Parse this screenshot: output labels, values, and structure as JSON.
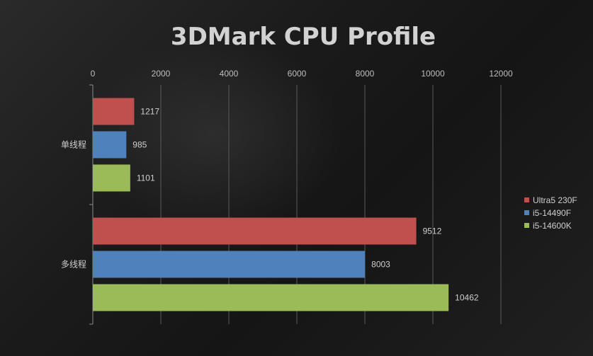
{
  "colors": {
    "series": [
      "#C0504D",
      "#4F81BD",
      "#9BBB59"
    ],
    "text": "#d2d2d2",
    "grid": "#5a5a5a"
  },
  "chart_data": {
    "type": "bar",
    "orientation": "horizontal",
    "title": "3DMark CPU Profile",
    "categories": [
      "单线程",
      "多线程"
    ],
    "series": [
      {
        "name": "Ultra5 230F",
        "values": [
          1217,
          9512
        ]
      },
      {
        "name": "i5-14490F",
        "values": [
          985,
          8003
        ]
      },
      {
        "name": "i5-14600K",
        "values": [
          1101,
          10462
        ]
      }
    ],
    "xlim": [
      0,
      12000
    ],
    "x_ticks": [
      0,
      2000,
      4000,
      6000,
      8000,
      10000,
      12000
    ],
    "x_axis_position": "top",
    "grid": true,
    "legend_position": "right",
    "data_labels": true
  }
}
